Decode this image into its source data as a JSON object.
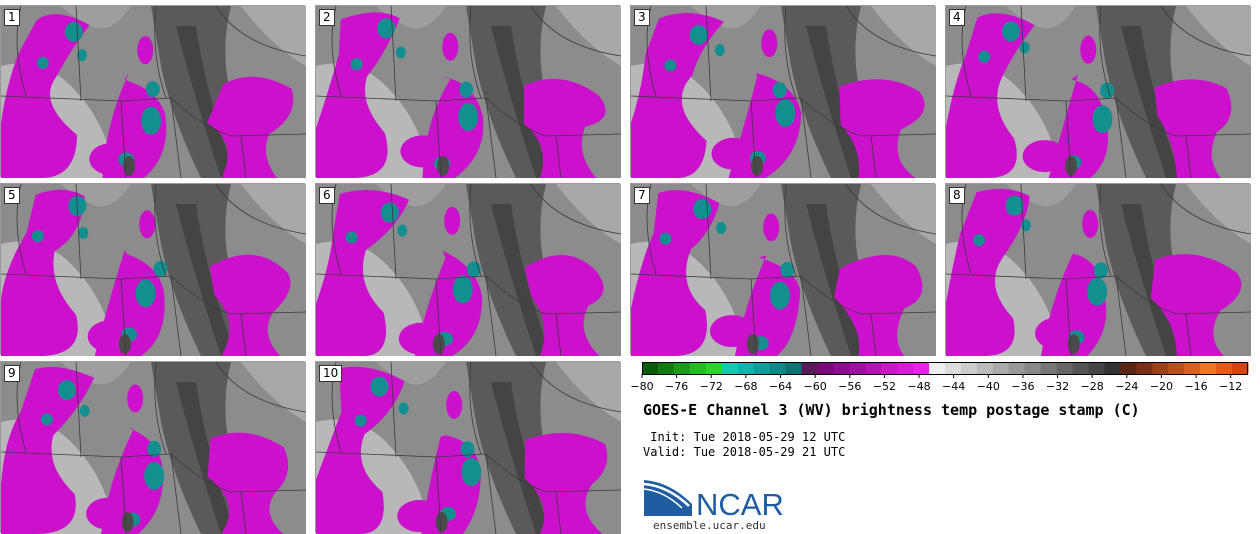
{
  "title": "GOES-E Channel 3 (WV) brightness temp postage stamp (C)",
  "init_label": " Init:",
  "init_value": "Tue 2018-05-29 12 UTC",
  "valid_label": "Valid:",
  "valid_value": "Tue 2018-05-29 21 UTC",
  "logo_text": "NCAR",
  "url": "ensemble.ucar.edu",
  "panels": [
    "1",
    "2",
    "3",
    "4",
    "5",
    "6",
    "7",
    "8",
    "9",
    "10"
  ],
  "colorbar": {
    "ticks": [
      "−80",
      "−76",
      "−72",
      "−68",
      "−64",
      "−60",
      "−56",
      "−52",
      "−48",
      "−44",
      "−40",
      "−36",
      "−32",
      "−28",
      "−24",
      "−20",
      "−16",
      "−12"
    ],
    "range": [
      -80,
      -10
    ],
    "colors": [
      "#0a5c0a",
      "#137a13",
      "#1a9a1a",
      "#22bb22",
      "#2ad42a",
      "#13c9b4",
      "#10b3b0",
      "#0f9d9d",
      "#0d8888",
      "#0b7373",
      "#5a1a5a",
      "#7a0a7a",
      "#8e0d8e",
      "#a010a0",
      "#b514b5",
      "#c818c8",
      "#da1cda",
      "#ea20ea",
      "#eeeeee",
      "#dddddd",
      "#cccccc",
      "#bbbbbb",
      "#aaaaaa",
      "#999999",
      "#888888",
      "#777777",
      "#666666",
      "#555555",
      "#444444",
      "#333333",
      "#5c2412",
      "#7a3015",
      "#9c401a",
      "#b9501d",
      "#d86020",
      "#f07624",
      "#e65a15",
      "#d6430c"
    ]
  },
  "colors": {
    "magenta": "#cc11cc",
    "teal": "#138f8f",
    "dark_gray": "#4a4a4a",
    "border": "#3a3a3a",
    "logo_blue": "#1f5ca0"
  }
}
